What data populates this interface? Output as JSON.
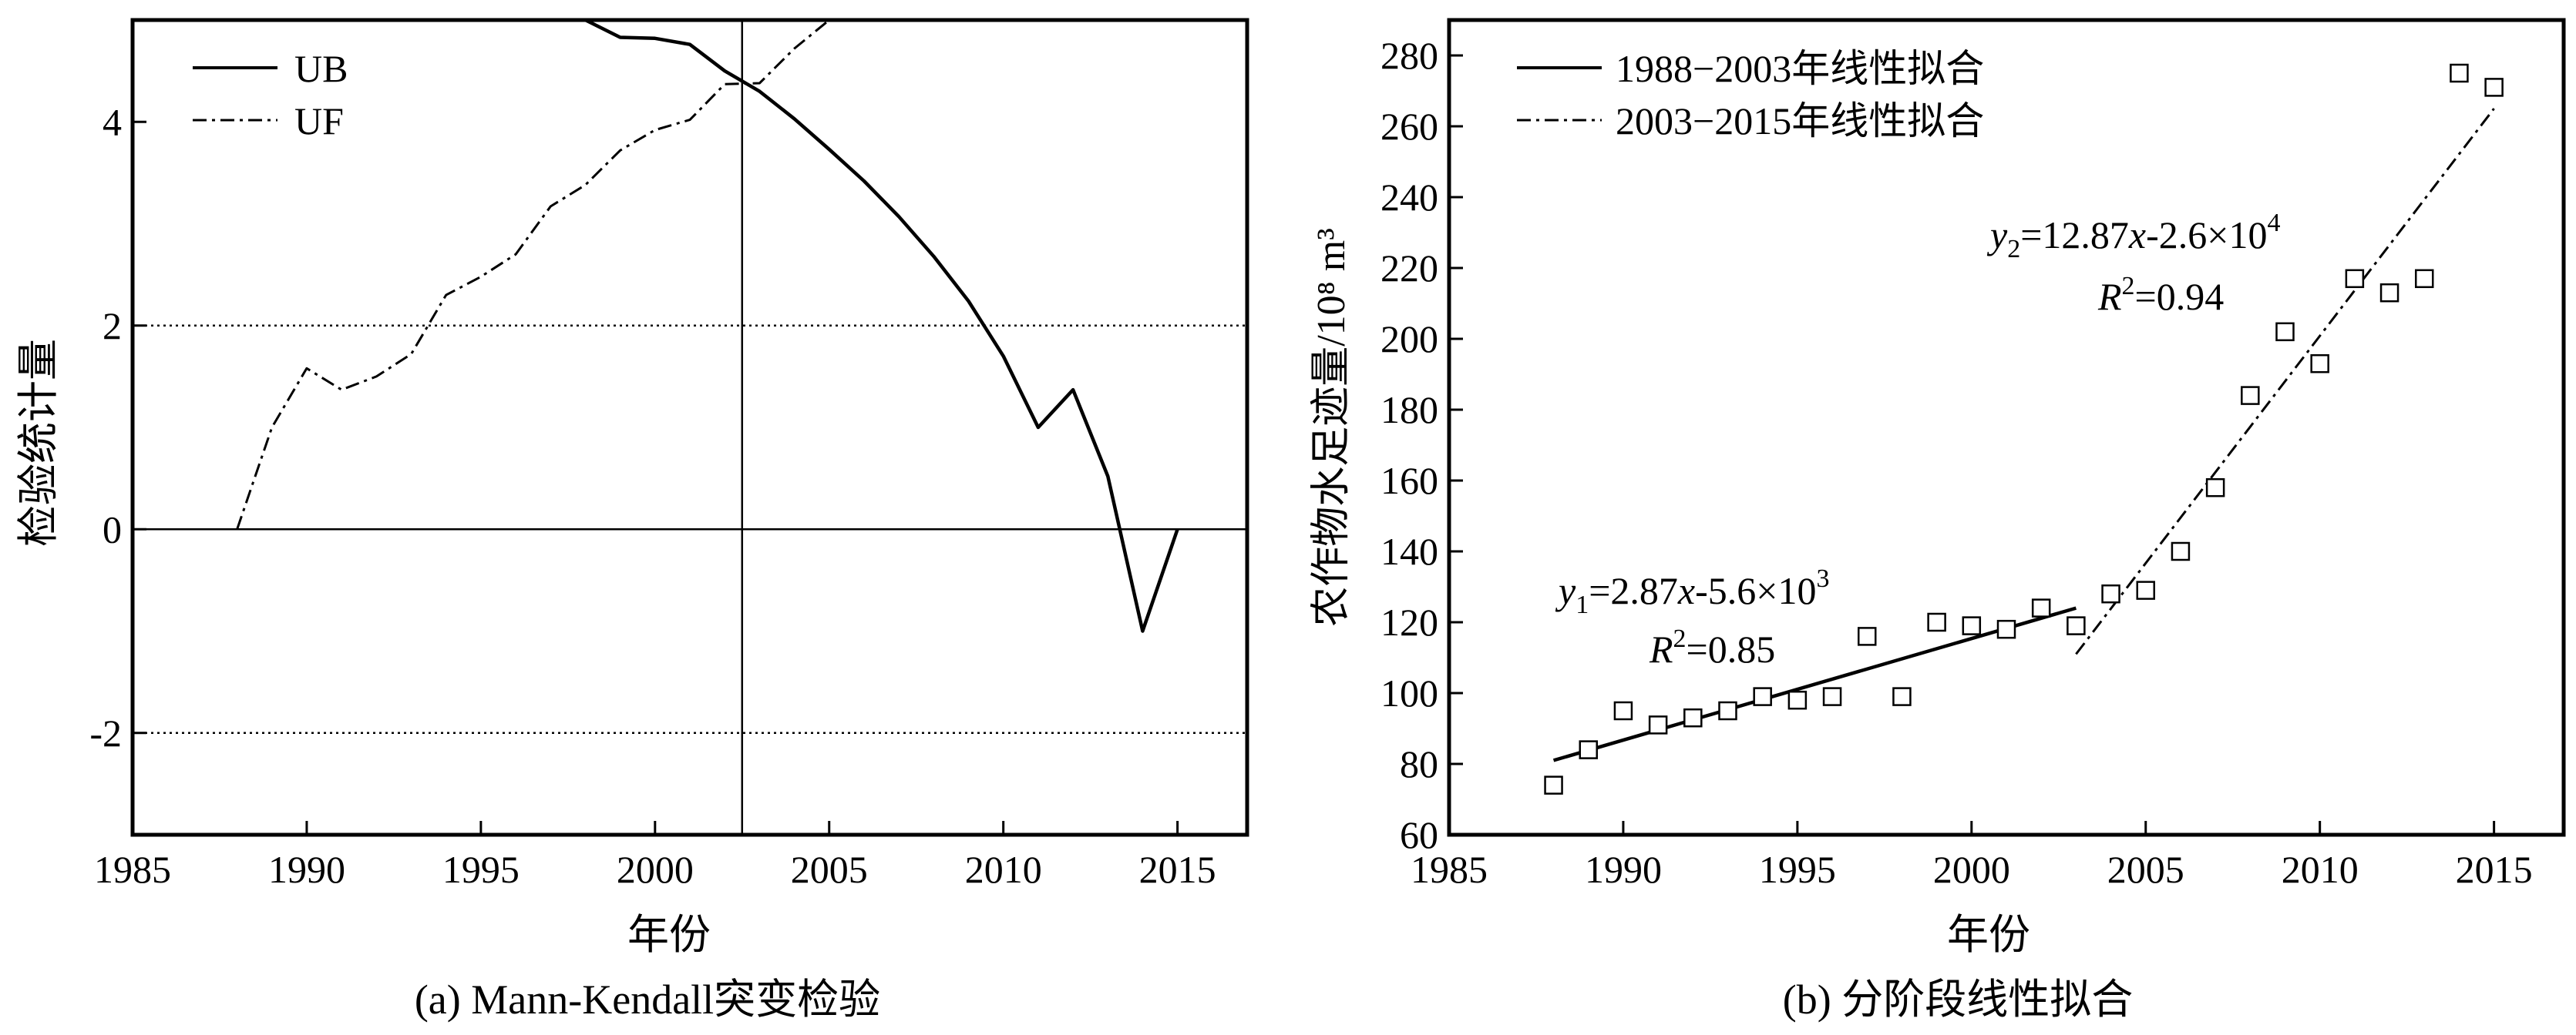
{
  "chart_data": [
    {
      "type": "line",
      "caption": "(a) Mann-Kendall突变检验",
      "xlabel": "年份",
      "ylabel": "检验统计量",
      "xlim": [
        1985,
        2017
      ],
      "ylim": [
        -3,
        5
      ],
      "xticks": [
        "1985",
        "1990",
        "1995",
        "2000",
        "2005",
        "2010",
        "2015"
      ],
      "yticks": [
        "-2",
        "0",
        "2",
        "4"
      ],
      "legend": [
        "UB",
        "UF"
      ],
      "legend_position": "top-left",
      "reference_lines": [
        2,
        0,
        -2
      ],
      "crossing_year": 2002.5,
      "series": [
        {
          "name": "UB",
          "style": "solid",
          "x": [
            1998,
            1999,
            2000,
            2001,
            2002,
            2003,
            2004,
            2005,
            2006,
            2007,
            2008,
            2009,
            2010,
            2011,
            2012,
            2013,
            2014,
            2015
          ],
          "y": [
            5.0,
            4.83,
            4.82,
            4.76,
            4.5,
            4.3,
            4.03,
            3.73,
            3.42,
            3.07,
            2.68,
            2.24,
            1.7,
            1.0,
            1.37,
            0.52,
            -1.0,
            0.0
          ]
        },
        {
          "name": "UF",
          "style": "dashdot",
          "x": [
            1988,
            1989,
            1990,
            1991,
            1992,
            1993,
            1994,
            1995,
            1996,
            1997,
            1998,
            1999,
            2000,
            2001,
            2002,
            2003,
            2004,
            2005
          ],
          "y": [
            0.0,
            1.0,
            1.58,
            1.37,
            1.5,
            1.72,
            2.3,
            2.48,
            2.7,
            3.17,
            3.38,
            3.72,
            3.92,
            4.02,
            4.37,
            4.38,
            4.72,
            5.0
          ]
        }
      ]
    },
    {
      "type": "scatter",
      "caption": "(b) 分阶段线性拟合",
      "xlabel": "年份",
      "ylabel": "农作物水足迹量/10⁸ m³",
      "xlim": [
        1985,
        2017
      ],
      "ylim": [
        60,
        290
      ],
      "xticks": [
        "1985",
        "1990",
        "1995",
        "2000",
        "2005",
        "2010",
        "2015"
      ],
      "yticks": [
        "60",
        "80",
        "100",
        "120",
        "140",
        "160",
        "180",
        "200",
        "220",
        "240",
        "260",
        "280"
      ],
      "legend": [
        "1988−2003年线性拟合",
        "2003−2015年线性拟合"
      ],
      "legend_position": "top-left",
      "points": {
        "x": [
          1988,
          1989,
          1990,
          1991,
          1992,
          1993,
          1994,
          1995,
          1996,
          1997,
          1998,
          1999,
          2000,
          2001,
          2002,
          2003,
          2004,
          2005,
          2006,
          2007,
          2008,
          2009,
          2010,
          2011,
          2012,
          2013,
          2014,
          2015
        ],
        "y": [
          74,
          84,
          95,
          91,
          93,
          95,
          99,
          98,
          99,
          116,
          99,
          120,
          119,
          118,
          124,
          119,
          128,
          129,
          140,
          158,
          184,
          202,
          193,
          217,
          213,
          217,
          275,
          271
        ]
      },
      "fits": [
        {
          "name": "1988−2003年线性拟合",
          "style": "solid",
          "x": [
            1988,
            2003
          ],
          "y": [
            81,
            124
          ]
        },
        {
          "name": "2003−2015年线性拟合",
          "style": "dashdot",
          "x": [
            2003,
            2015
          ],
          "y": [
            111,
            265
          ]
        }
      ],
      "annotations": {
        "fit1_equation": {
          "var": "y",
          "sub": "1",
          "rest": "=2.87",
          "x": "x",
          "mid": "-5.6×10",
          "sup": "3"
        },
        "fit1_r2": {
          "var": "R",
          "sup": "2",
          "rest": "=0.85"
        },
        "fit2_equation": {
          "var": "y",
          "sub": "2",
          "rest": "=12.87",
          "x": "x",
          "mid": "-2.6×10",
          "sup": "4"
        },
        "fit2_r2": {
          "var": "R",
          "sup": "2",
          "rest": "=0.94"
        }
      }
    }
  ]
}
